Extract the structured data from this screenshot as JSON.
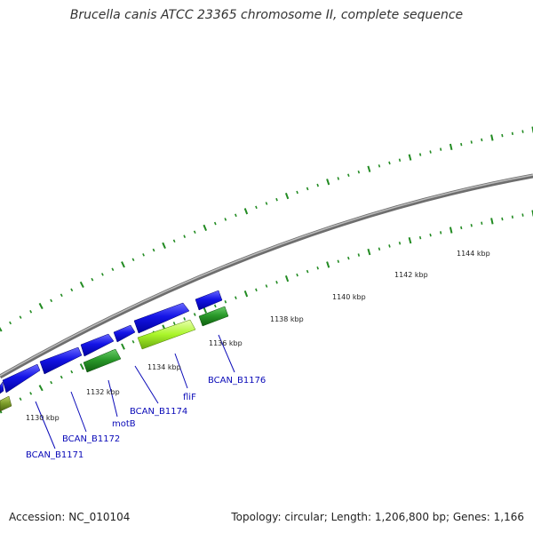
{
  "title": "Brucella canis ATCC 23365 chromosome II, complete sequence",
  "footer": {
    "accession": "Accession: NC_010104",
    "topology": "Topology: circular; Length: 1,206,800 bp; Genes: 1,166"
  },
  "colors": {
    "backbone": "#8a8a8a",
    "forward_gene": "#1414e6",
    "reverse_gene": "#2a9a2a",
    "highlight_gene": "#aaf52a",
    "olive_gene": "#7a9a28",
    "tick": "#228b22",
    "label_link": "#0a0ab8"
  },
  "scale_labels": [
    "1130 kbp",
    "1132 kbp",
    "1134 kbp",
    "1136 kbp",
    "1138 kbp",
    "1140 kbp",
    "1142 kbp",
    "1144 kbp"
  ],
  "gene_labels": [
    "BCAN_B1171",
    "BCAN_B1172",
    "motB",
    "BCAN_B1174",
    "fliF",
    "BCAN_B1176"
  ]
}
